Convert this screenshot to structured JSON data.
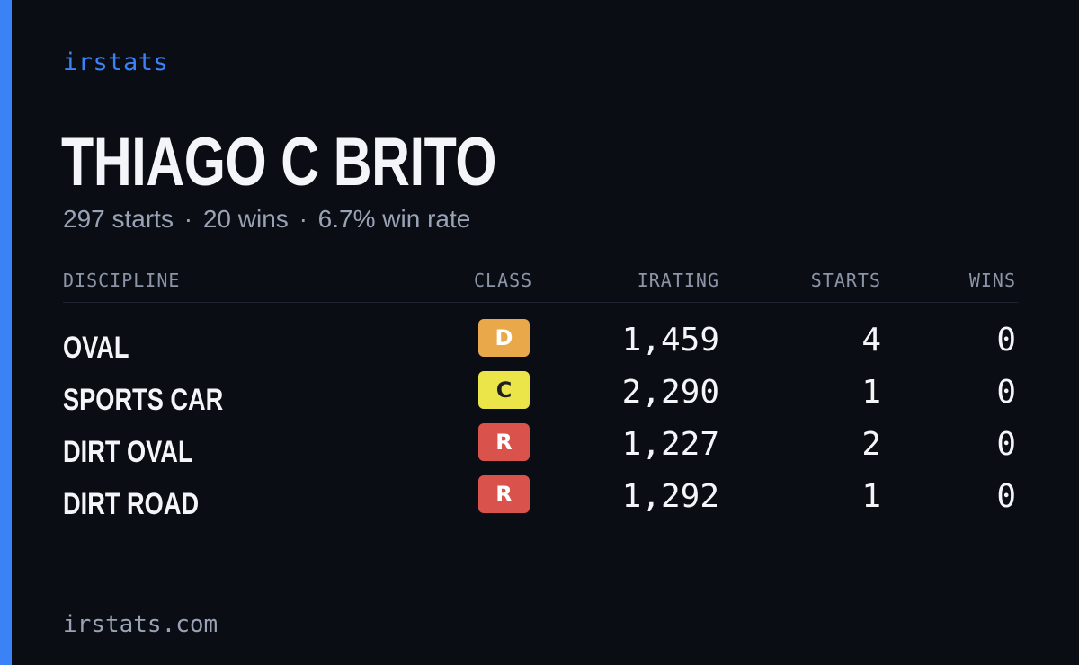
{
  "brand": "irstats",
  "driver": {
    "name": "THIAGO C BRITO",
    "starts_text": "297 starts",
    "wins_text": "20 wins",
    "win_rate_text": "6.7% win rate",
    "separator": "·"
  },
  "table": {
    "headers": {
      "discipline": "DISCIPLINE",
      "class": "CLASS",
      "irating": "IRATING",
      "starts": "STARTS",
      "wins": "WINS"
    },
    "rows": [
      {
        "discipline": "OVAL",
        "class": "D",
        "class_bg": "#e9a94b",
        "class_fg": "#ffffff",
        "irating": "1,459",
        "starts": "4",
        "wins": "0"
      },
      {
        "discipline": "SPORTS CAR",
        "class": "C",
        "class_bg": "#ece54a",
        "class_fg": "#1e1f26",
        "irating": "2,290",
        "starts": "1",
        "wins": "0"
      },
      {
        "discipline": "DIRT OVAL",
        "class": "R",
        "class_bg": "#d9524c",
        "class_fg": "#ffffff",
        "irating": "1,227",
        "starts": "2",
        "wins": "0"
      },
      {
        "discipline": "DIRT ROAD",
        "class": "R",
        "class_bg": "#d9524c",
        "class_fg": "#ffffff",
        "irating": "1,292",
        "starts": "1",
        "wins": "0"
      }
    ]
  },
  "footer": "irstats.com",
  "colors": {
    "accent": "#3b82f6",
    "background": "#0a0d14",
    "text_primary": "#f4f5f8",
    "text_muted": "#9aa3b5"
  }
}
